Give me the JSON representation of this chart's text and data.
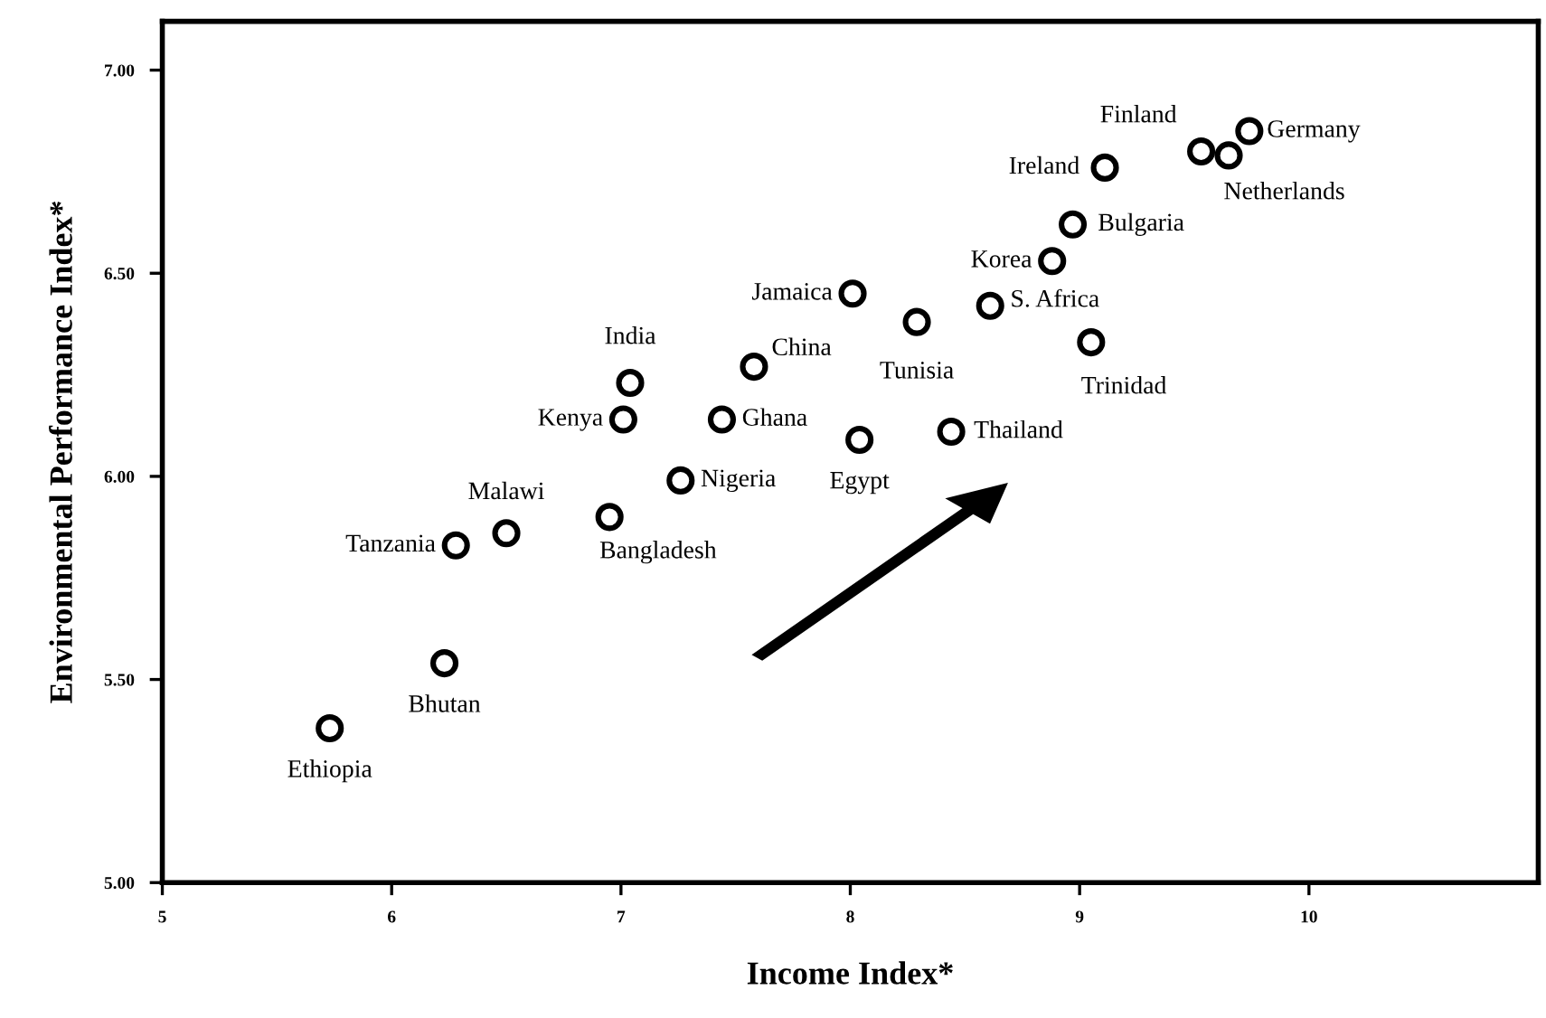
{
  "chart_data": {
    "type": "scatter",
    "xlabel": "Income Index*",
    "ylabel": "Environmental Performance Index*",
    "x": [
      5.73,
      6.23,
      6.28,
      6.5,
      6.95,
      7.26,
      7.01,
      7.04,
      7.44,
      7.58,
      8.01,
      8.04,
      8.29,
      8.44,
      8.61,
      8.88,
      8.97,
      9.05,
      9.11,
      9.53,
      9.65,
      9.74
    ],
    "values": [
      5.38,
      5.54,
      5.83,
      5.86,
      5.9,
      5.99,
      6.14,
      6.23,
      6.14,
      6.27,
      6.45,
      6.09,
      6.38,
      6.11,
      6.42,
      6.53,
      6.62,
      6.33,
      6.76,
      6.8,
      6.79,
      6.85
    ],
    "color": "#000000",
    "marker": "circle",
    "grid": false,
    "legend": false,
    "xlim": [
      5,
      11
    ],
    "xticks": [
      5,
      6,
      7,
      8,
      9,
      10
    ],
    "ylim": [
      5,
      7.12
    ],
    "yticks": [
      {
        "value": 5,
        "label": "5.00"
      },
      {
        "value": 5.5,
        "label": "5.50"
      },
      {
        "value": 6,
        "label": "6.00"
      },
      {
        "value": 6.5,
        "label": "6.50"
      },
      {
        "value": 7,
        "label": "7.00"
      }
    ],
    "annotations": [
      {
        "text": "Ethiopia",
        "x": 5.73,
        "y": 5.38
      },
      {
        "text": "Bhutan",
        "x": 6.23,
        "y": 5.54
      },
      {
        "text": "Tanzania",
        "x": 6.28,
        "y": 5.83
      },
      {
        "text": "Malawi",
        "x": 6.5,
        "y": 5.86
      },
      {
        "text": "Bangladesh",
        "x": 6.95,
        "y": 5.9
      },
      {
        "text": "Nigeria",
        "x": 7.26,
        "y": 5.99
      },
      {
        "text": "Kenya",
        "x": 7.01,
        "y": 6.14
      },
      {
        "text": "India",
        "x": 7.04,
        "y": 6.23
      },
      {
        "text": "Ghana",
        "x": 7.44,
        "y": 6.14
      },
      {
        "text": "China",
        "x": 7.58,
        "y": 6.27
      },
      {
        "text": "Jamaica",
        "x": 8.01,
        "y": 6.45
      },
      {
        "text": "Egypt",
        "x": 8.04,
        "y": 6.09
      },
      {
        "text": "Tunisia",
        "x": 8.29,
        "y": 6.38
      },
      {
        "text": "Thailand",
        "x": 8.44,
        "y": 6.11
      },
      {
        "text": "S. Africa",
        "x": 8.61,
        "y": 6.42
      },
      {
        "text": "Korea",
        "x": 8.88,
        "y": 6.53
      },
      {
        "text": "Bulgaria",
        "x": 8.97,
        "y": 6.62
      },
      {
        "text": "Trinidad",
        "x": 9.05,
        "y": 6.33
      },
      {
        "text": "Ireland",
        "x": 9.11,
        "y": 6.76
      },
      {
        "text": "Finland",
        "x": 9.53,
        "y": 6.8
      },
      {
        "text": "Netherlands",
        "x": 9.65,
        "y": 6.79
      },
      {
        "text": "Germany",
        "x": 9.74,
        "y": 6.85
      }
    ]
  }
}
